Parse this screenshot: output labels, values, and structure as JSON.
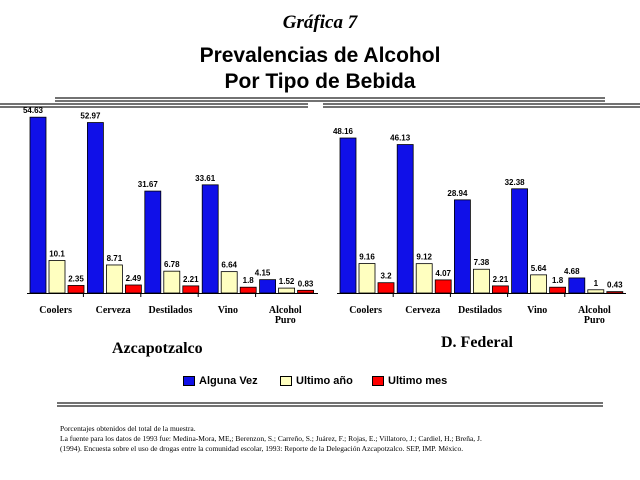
{
  "caption": "Gráfica 7",
  "title_lines": [
    "Prevalencias de Alcohol",
    "Por Tipo de Bebida"
  ],
  "colors": {
    "Alguna Vez": "#1010e8",
    "Ultimo año": "#ffffc0",
    "Ultimo mes": "#ff0000"
  },
  "legend": [
    "Alguna Vez",
    "Ultimo año",
    "Ultimo mes"
  ],
  "footnote": {
    "line1": "Porcentajes obtenidos del total de la muestra.",
    "line2": "La fuente para los datos de 1993 fue: Medina-Mora, ME,; Berenzon, S.; Carreño, S.; Juárez, F.; Rojas, E.; Villatoro, J.; Cardiel, H.; Breña, J.",
    "line3": "(1994). Encuesta sobre el uso de drogas entre la comunidad escolar, 1993: Reporte de la Delegación Azcapotzalco. SEP, IMP. México."
  },
  "chart_data": [
    {
      "type": "bar",
      "group_label": "Azcapotzalco",
      "categories": [
        "Coolers",
        "Cerveza",
        "Destilados",
        "Vino",
        "Alcohol Puro"
      ],
      "series": [
        {
          "name": "Alguna Vez",
          "values": [
            54.63,
            52.97,
            31.67,
            33.61,
            4.15
          ],
          "labels": [
            "54.63",
            "52.97",
            "31.67",
            "33.61",
            "4.15"
          ]
        },
        {
          "name": "Ultimo año",
          "values": [
            10.1,
            8.71,
            6.78,
            6.64,
            1.52
          ],
          "labels": [
            "10.1",
            "8.71",
            "6.78",
            "6.64",
            "1.52"
          ]
        },
        {
          "name": "Ultimo mes",
          "values": [
            2.35,
            2.49,
            2.21,
            1.8,
            0.83
          ],
          "labels": [
            "2.35",
            "2.49",
            "2.21",
            "1.8",
            "0.83"
          ]
        }
      ],
      "ylim": [
        0,
        55
      ]
    },
    {
      "type": "bar",
      "group_label": "D. Federal",
      "categories": [
        "Coolers",
        "Cerveza",
        "Destilados",
        "Vino",
        "Alcohol Puro"
      ],
      "series": [
        {
          "name": "Alguna Vez",
          "values": [
            48.16,
            46.13,
            28.94,
            32.38,
            4.68
          ],
          "labels": [
            "48.16",
            "46.13",
            "28.94",
            "32.38",
            "4.68"
          ]
        },
        {
          "name": "Ultimo año",
          "values": [
            9.16,
            9.12,
            7.38,
            5.64,
            1
          ],
          "labels": [
            "9.16",
            "9.12",
            "7.38",
            "5.64",
            "1"
          ]
        },
        {
          "name": "Ultimo mes",
          "values": [
            3.2,
            4.07,
            2.21,
            1.8,
            0.43
          ],
          "labels": [
            "3.2",
            "4.07",
            "2.21",
            "1.8",
            "0.43"
          ]
        }
      ],
      "ylim": [
        0,
        55
      ]
    }
  ]
}
